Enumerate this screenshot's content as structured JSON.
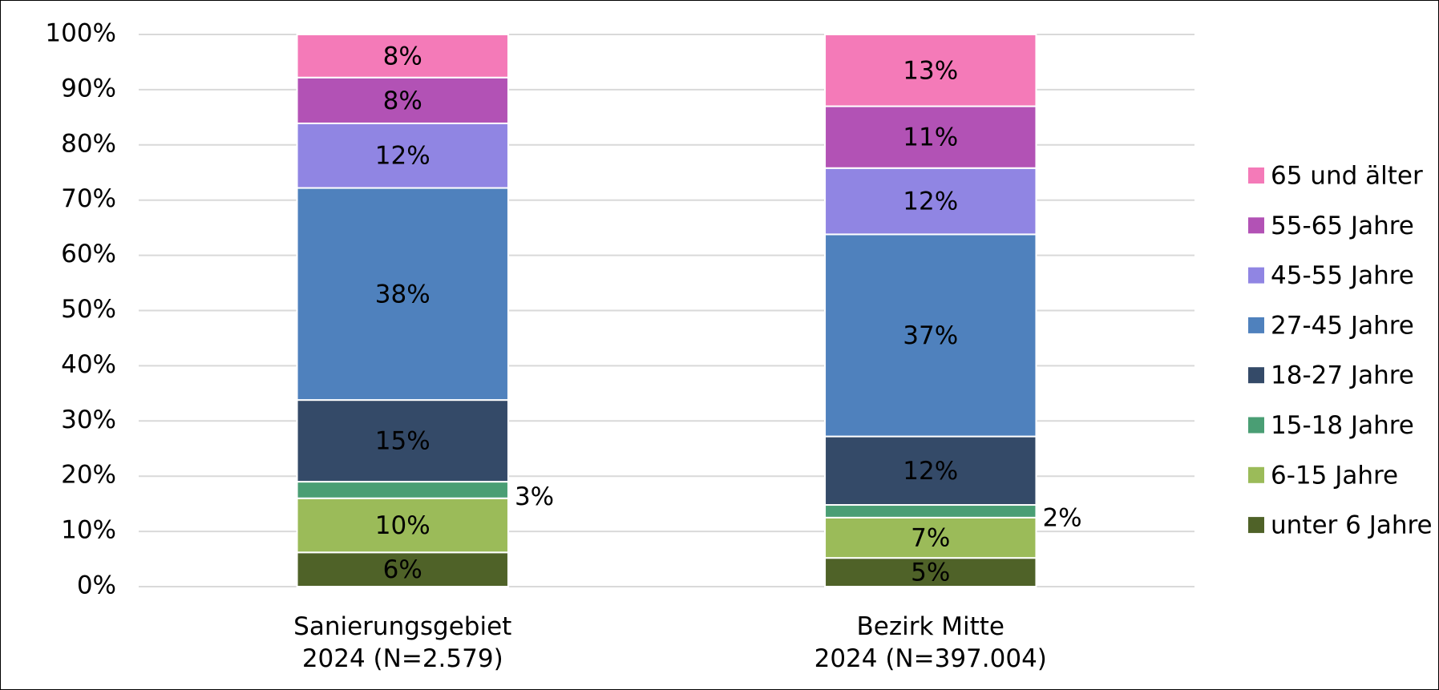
{
  "chart_data": {
    "type": "stacked_bar",
    "categories": [
      "Sanierungsgebiet\n2024 (N=2.579)",
      "Bezirk Mitte\n2024 (N=397.004)"
    ],
    "series": [
      {
        "name": "unter 6 Jahre",
        "color": "#4f6228",
        "values": [
          6.2,
          5.2
        ],
        "value_labels": [
          "6%",
          "5%"
        ]
      },
      {
        "name": "6-15 Jahre",
        "color": "#9bbb59",
        "values": [
          9.8,
          7.3
        ],
        "value_labels": [
          "10%",
          "7%"
        ]
      },
      {
        "name": "15-18 Jahre",
        "color": "#4a9e74",
        "values": [
          3.0,
          2.3
        ],
        "value_labels": [
          "3%",
          "2%"
        ]
      },
      {
        "name": "18-27 Jahre",
        "color": "#344a68",
        "values": [
          14.8,
          12.4
        ],
        "value_labels": [
          "15%",
          "12%"
        ]
      },
      {
        "name": "27-45 Jahre",
        "color": "#4f81bd",
        "values": [
          38.4,
          36.6
        ],
        "value_labels": [
          "38%",
          "37%"
        ]
      },
      {
        "name": "45-55 Jahre",
        "color": "#9085e3",
        "values": [
          11.7,
          12.0
        ],
        "value_labels": [
          "12%",
          "12%"
        ]
      },
      {
        "name": "55-65 Jahre",
        "color": "#b252b5",
        "values": [
          8.3,
          11.2
        ],
        "value_labels": [
          "8%",
          "11%"
        ]
      },
      {
        "name": "65 und älter",
        "color": "#f47ab8",
        "values": [
          7.8,
          13.0
        ],
        "value_labels": [
          "8%",
          "13%"
        ]
      }
    ],
    "ylim": [
      0,
      100
    ],
    "yticks": [
      {
        "value": 0,
        "label": "0%"
      },
      {
        "value": 10,
        "label": "10%"
      },
      {
        "value": 20,
        "label": "20%"
      },
      {
        "value": 30,
        "label": "30%"
      },
      {
        "value": 40,
        "label": "40%"
      },
      {
        "value": 50,
        "label": "50%"
      },
      {
        "value": 60,
        "label": "60%"
      },
      {
        "value": 70,
        "label": "70%"
      },
      {
        "value": 80,
        "label": "80%"
      },
      {
        "value": 90,
        "label": "90%"
      },
      {
        "value": 100,
        "label": "100%"
      }
    ],
    "grid": true,
    "legend": "right"
  }
}
